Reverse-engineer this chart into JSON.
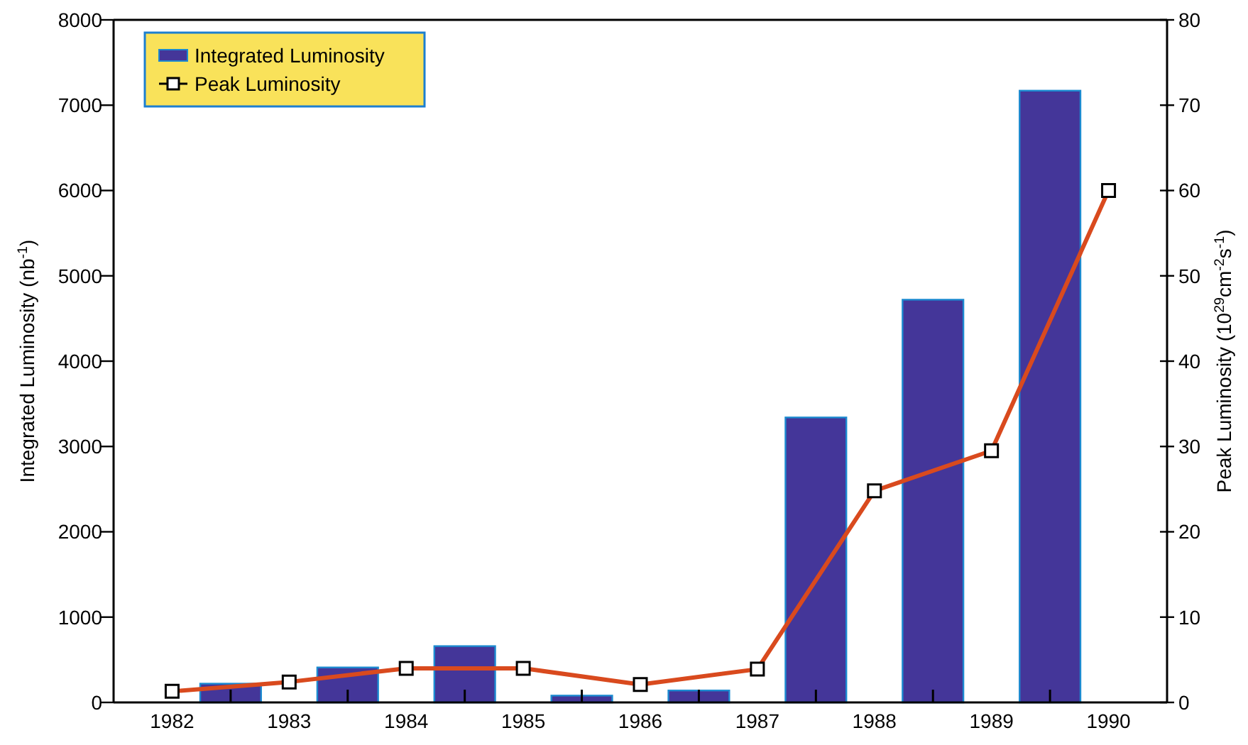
{
  "chart_data": {
    "type": "bar",
    "xlabel": null,
    "ylabel": "Integrated Luminosity (nb$^{-1}$)",
    "y2label": "Peak Luminosity (10$^{29}$cm$^{-2}$s$^{-1}$)",
    "xlim": [
      1981.5,
      1990.5
    ],
    "xticks": [
      1982,
      1983,
      1984,
      1985,
      1986,
      1987,
      1988,
      1989,
      1990,
      {
        "value": 1982.5,
        "label": null
      },
      {
        "value": 1983.5,
        "label": null
      },
      {
        "value": 1984.5,
        "label": null
      },
      {
        "value": 1985.5,
        "label": null
      },
      {
        "value": 1986.5,
        "label": null
      },
      {
        "value": 1987.5,
        "label": null
      },
      {
        "value": 1988.5,
        "label": null
      },
      {
        "value": 1989.5,
        "label": null
      }
    ],
    "ylim": [
      0,
      8000
    ],
    "yticks": [
      0,
      1000,
      2000,
      3000,
      4000,
      5000,
      6000,
      7000,
      8000
    ],
    "y2lim": [
      0,
      80
    ],
    "y2ticks": [
      0,
      10,
      20,
      30,
      40,
      50,
      60,
      70,
      80
    ],
    "legend": "top left",
    "grid": false,
    "series": [
      {
        "name": "Integrated Luminosity",
        "color": "#443699",
        "x": [
          1982.5,
          1983.5,
          1984.5,
          1985.5,
          1986.5,
          1987.5,
          1988.5,
          1989.5
        ],
        "values": [
          220,
          410,
          660,
          80,
          140,
          3340,
          4720,
          7170
        ]
      },
      {
        "name": "Peak Luminosity",
        "type": "line",
        "axis": "y2",
        "color": "#d94a1e",
        "marker": "square",
        "x": [
          1982,
          1983,
          1984,
          1985,
          1986,
          1987,
          1988,
          1989,
          1990
        ],
        "values": [
          1.3,
          2.4,
          4.0,
          4.0,
          2.1,
          3.9,
          24.8,
          29.5,
          60
        ]
      }
    ]
  }
}
